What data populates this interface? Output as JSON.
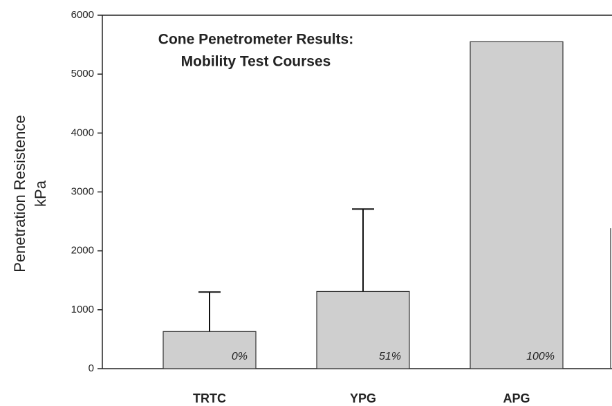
{
  "chart_data": {
    "type": "bar",
    "title": [
      "Cone Penetrometer Results:",
      "Mobility Test Courses"
    ],
    "ylabel": [
      "Penetration Resistence",
      "kPa"
    ],
    "categories": [
      "TRTC",
      "YPG",
      "APG"
    ],
    "values": [
      630,
      1310,
      5550
    ],
    "errors": [
      670,
      1400,
      null
    ],
    "annotations": [
      "0%",
      "51%",
      "100%"
    ],
    "color": "#cfcfcf",
    "ylim": [
      0,
      6000
    ],
    "yticks": [
      0,
      1000,
      2000,
      3000,
      4000,
      5000,
      6000
    ],
    "grid": false
  }
}
